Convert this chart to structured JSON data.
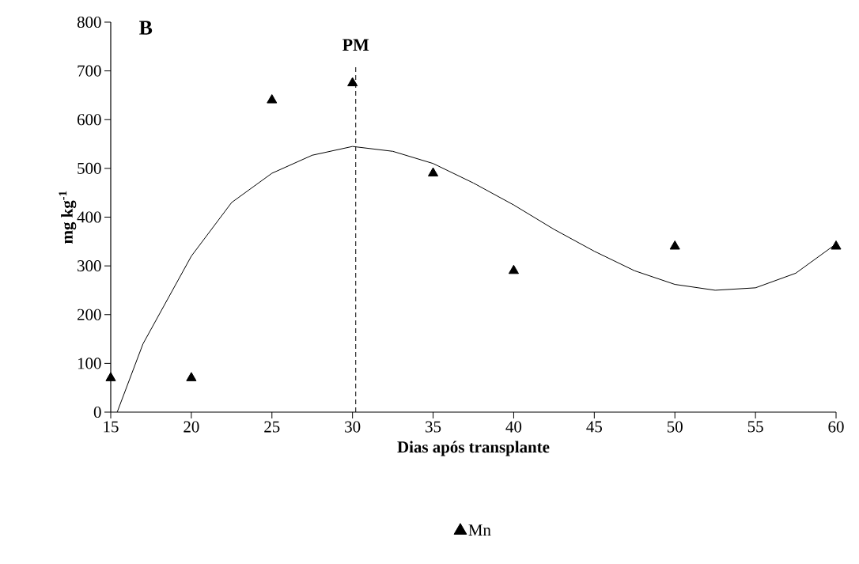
{
  "chart_data": {
    "type": "scatter",
    "xlabel": "Dias após transplante",
    "ylabel": "mg kg$^{-1}$",
    "annotations": [
      "B"
    ],
    "xlim": [
      15,
      60
    ],
    "ylim": [
      0,
      800
    ],
    "xticks": [
      15,
      20,
      25,
      30,
      35,
      40,
      45,
      50,
      55,
      60
    ],
    "yticks": [
      0,
      100,
      200,
      300,
      400,
      500,
      600,
      700,
      800
    ],
    "marker": "triangle",
    "legend": "bottom",
    "grid": false,
    "ref_lines": [
      {
        "axis": "x",
        "value": 30.2,
        "label": "PM",
        "line_style": "dashed"
      }
    ],
    "series": [
      {
        "name": "Mn",
        "color": "#000000",
        "x": [
          15,
          20,
          25,
          30,
          35,
          40,
          50,
          60
        ],
        "values": [
          70,
          70,
          640,
          675,
          490,
          290,
          340,
          340
        ]
      },
      {
        "type": "line",
        "color": "#000000",
        "marker": "none",
        "x": [
          15.4,
          17,
          20,
          22.5,
          25,
          27.5,
          30,
          32.5,
          35,
          37.5,
          40,
          42.5,
          45,
          47.5,
          50,
          52.5,
          55,
          57.5,
          60
        ],
        "values": [
          0,
          140,
          320,
          430,
          490,
          527,
          545,
          535,
          510,
          470,
          425,
          375,
          330,
          290,
          262,
          250,
          255,
          285,
          345
        ]
      }
    ]
  }
}
